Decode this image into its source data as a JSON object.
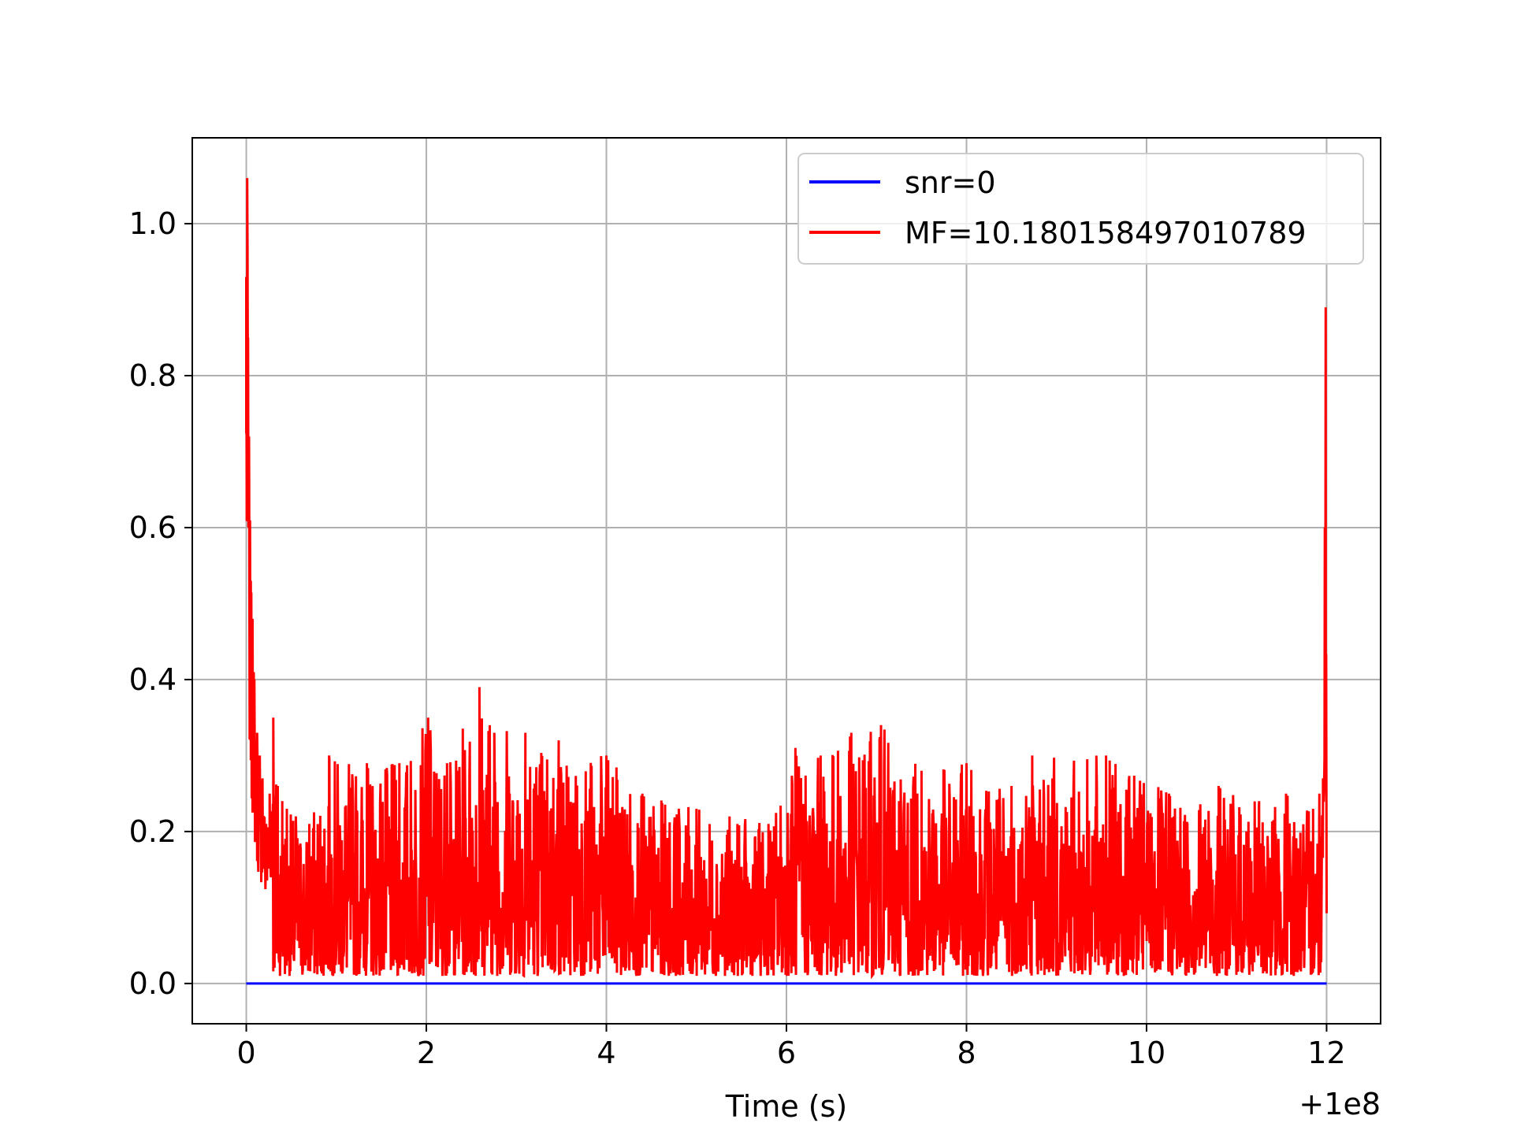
{
  "chart_data": {
    "type": "line",
    "title": "",
    "xlabel": "Time (s)",
    "ylabel": "",
    "x_offset_label": "+1e8",
    "xlim": [
      -0.6,
      12.6
    ],
    "ylim": [
      -0.053,
      1.113
    ],
    "xticks": [
      0,
      2,
      4,
      6,
      8,
      10,
      12
    ],
    "xtick_labels": [
      "0",
      "2",
      "4",
      "6",
      "8",
      "10",
      "12"
    ],
    "yticks": [
      0.0,
      0.2,
      0.4,
      0.6,
      0.8,
      1.0
    ],
    "ytick_labels": [
      "0.0",
      "0.2",
      "0.4",
      "0.6",
      "0.8",
      "1.0"
    ],
    "grid": true,
    "legend_position": "top-right",
    "series": [
      {
        "name": "snr=0",
        "color": "#0000ff",
        "x": [
          0,
          12
        ],
        "y": [
          0,
          0
        ]
      },
      {
        "name": "MF=10.180158497010789",
        "color": "#ff0000",
        "x": [
          0.0,
          0.01,
          0.02,
          0.03,
          0.05,
          0.07,
          0.09,
          0.12,
          0.15,
          0.18,
          0.22,
          0.26,
          0.3,
          0.35,
          0.4,
          0.45,
          0.55,
          0.7,
          0.92,
          1.34,
          1.7,
          2.02,
          2.23,
          2.59,
          3.1,
          3.47,
          4.0,
          4.4,
          5.0,
          5.8,
          6.1,
          6.38,
          6.72,
          7.05,
          7.5,
          8.0,
          8.5,
          8.73,
          9.55,
          10.25,
          10.8,
          11.25,
          11.55,
          11.85,
          11.92,
          11.96,
          11.98,
          11.99,
          12.0
        ],
        "y": [
          0.93,
          1.06,
          0.85,
          0.72,
          0.53,
          0.48,
          0.4,
          0.33,
          0.3,
          0.27,
          0.21,
          0.25,
          0.35,
          0.26,
          0.24,
          0.23,
          0.22,
          0.21,
          0.3,
          0.29,
          0.29,
          0.35,
          0.29,
          0.39,
          0.33,
          0.32,
          0.3,
          0.25,
          0.23,
          0.21,
          0.31,
          0.3,
          0.33,
          0.34,
          0.28,
          0.29,
          0.26,
          0.3,
          0.3,
          0.25,
          0.26,
          0.24,
          0.25,
          0.23,
          0.25,
          0.27,
          0.6,
          0.89,
          0.1
        ]
      }
    ]
  }
}
